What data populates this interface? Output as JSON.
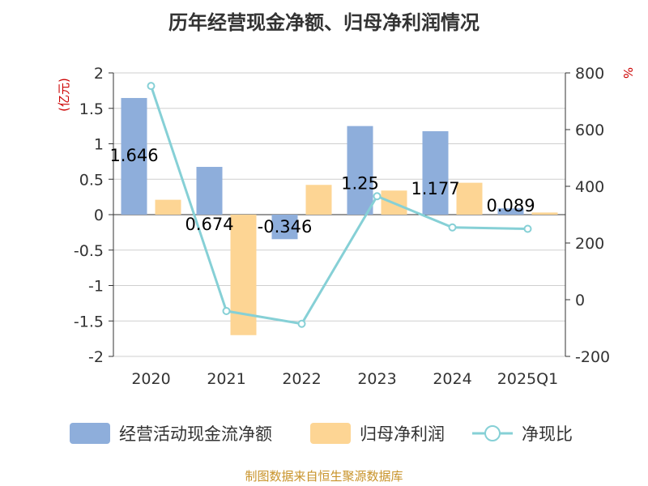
{
  "chart_data": {
    "type": "bar+line",
    "title": "历年经营现金净额、归母净利润情况",
    "categories": [
      "2020",
      "2021",
      "2022",
      "2023",
      "2024",
      "2025Q1"
    ],
    "series": [
      {
        "name": "经营活动现金流净额",
        "type": "bar",
        "axis": "left",
        "color": "#8eaedb",
        "values": [
          1.646,
          0.674,
          -0.346,
          1.25,
          1.177,
          0.089
        ],
        "labels": [
          "1.646",
          "0.674",
          "-0.346",
          "1.25",
          "1.177",
          "0.089"
        ]
      },
      {
        "name": "归母净利润",
        "type": "bar",
        "axis": "left",
        "color": "#fdd594",
        "values": [
          0.21,
          -1.7,
          0.42,
          0.34,
          0.45,
          0.03
        ]
      },
      {
        "name": "净现比",
        "type": "line",
        "axis": "right",
        "color": "#86d0d6",
        "values": [
          754,
          -40,
          -85,
          365,
          255,
          250
        ]
      }
    ],
    "left_axis": {
      "unit": "(亿元)",
      "ylim": [
        -2,
        2
      ],
      "ticks": [
        2,
        1.5,
        1,
        0.5,
        0,
        -0.5,
        -1,
        -1.5,
        -2
      ],
      "tick_labels": [
        "2",
        "1.5",
        "1",
        "0.5",
        "0",
        "-0.5",
        "-1",
        "-1.5",
        "-2"
      ]
    },
    "right_axis": {
      "unit": "%",
      "ylim": [
        -200,
        800
      ],
      "ticks": [
        800,
        600,
        400,
        200,
        0,
        -200
      ],
      "tick_labels": [
        "800",
        "600",
        "400",
        "200",
        "0",
        "-200"
      ]
    },
    "legend": [
      "经营活动现金流净额",
      "归母净利润",
      "净现比"
    ],
    "legend_position": "bottom",
    "grid": true
  },
  "source": "制图数据来自恒生聚源数据库"
}
